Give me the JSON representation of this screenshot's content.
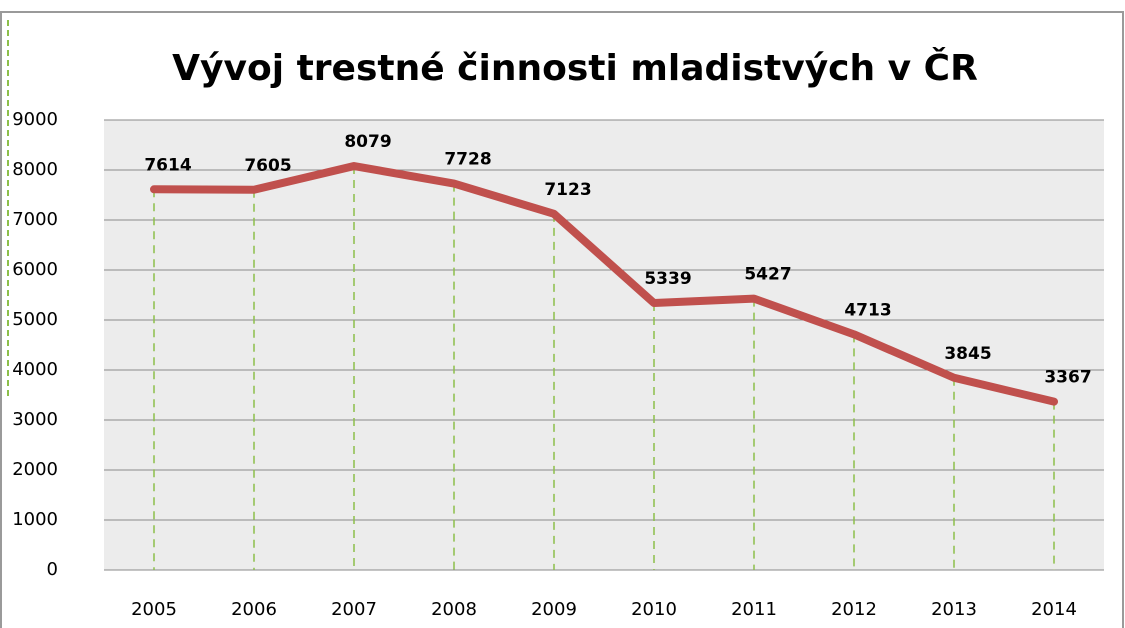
{
  "chart_data": {
    "type": "line",
    "title": "Vývoj trestné činnosti mladistvých v ČR",
    "categories": [
      "2005",
      "2006",
      "2007",
      "2008",
      "2009",
      "2010",
      "2011",
      "2012",
      "2013",
      "2014"
    ],
    "values": [
      7614,
      7605,
      8079,
      7728,
      7123,
      5339,
      5427,
      4713,
      3845,
      3367
    ],
    "color": "#c0504d",
    "ylim": [
      0,
      9000
    ],
    "yticks": [
      0,
      1000,
      2000,
      3000,
      4000,
      5000,
      6000,
      7000,
      8000,
      9000
    ],
    "grid": true
  }
}
